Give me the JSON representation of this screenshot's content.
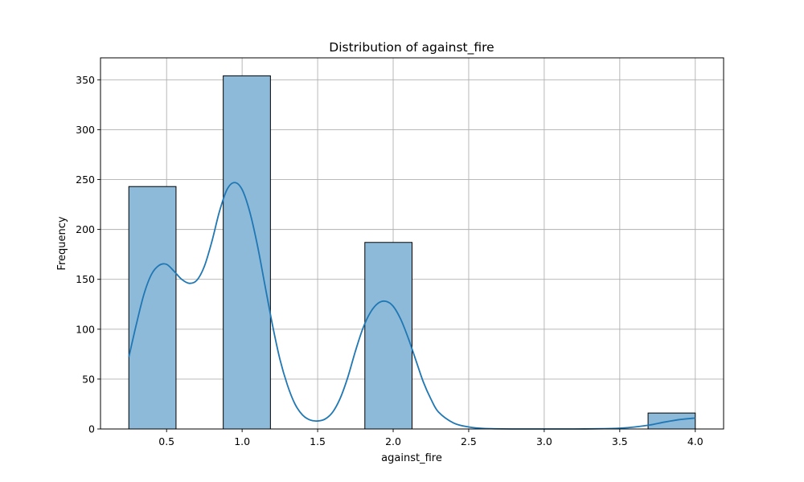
{
  "chart_data": {
    "type": "bar",
    "title": "Distribution of against_fire",
    "xlabel": "against_fire",
    "ylabel": "Frequency",
    "xlim": [
      0.0625,
      4.1875
    ],
    "ylim": [
      0,
      372
    ],
    "xticks": [
      0.5,
      1.0,
      1.5,
      2.0,
      2.5,
      3.0,
      3.5,
      4.0
    ],
    "xtick_labels": [
      "0.5",
      "1.0",
      "1.5",
      "2.0",
      "2.5",
      "3.0",
      "3.5",
      "4.0"
    ],
    "yticks": [
      0,
      50,
      100,
      150,
      200,
      250,
      300,
      350
    ],
    "ytick_labels": [
      "0",
      "50",
      "100",
      "150",
      "200",
      "250",
      "300",
      "350"
    ],
    "grid": true,
    "bin_width": 0.3125,
    "bins": [
      {
        "x0": 0.25,
        "x1": 0.5625,
        "count": 243
      },
      {
        "x0": 0.875,
        "x1": 1.1875,
        "count": 354
      },
      {
        "x0": 1.8125,
        "x1": 2.125,
        "count": 187
      },
      {
        "x0": 3.6875,
        "x1": 4.0,
        "count": 16
      }
    ],
    "kde": {
      "x": [
        0.25,
        0.3,
        0.35,
        0.4,
        0.45,
        0.5,
        0.55,
        0.6,
        0.65,
        0.7,
        0.75,
        0.8,
        0.85,
        0.9,
        0.95,
        1.0,
        1.05,
        1.1,
        1.15,
        1.2,
        1.25,
        1.3,
        1.35,
        1.4,
        1.45,
        1.5,
        1.55,
        1.6,
        1.65,
        1.7,
        1.75,
        1.8,
        1.85,
        1.9,
        1.95,
        2.0,
        2.05,
        2.1,
        2.15,
        2.2,
        2.25,
        2.3,
        2.4,
        2.5,
        2.6,
        2.8,
        3.0,
        3.2,
        3.4,
        3.5,
        3.6,
        3.7,
        3.8,
        3.9,
        4.0
      ],
      "y": [
        72,
        105,
        135,
        155,
        164,
        165,
        158,
        150,
        146,
        149,
        163,
        188,
        218,
        240,
        247,
        240,
        218,
        185,
        145,
        105,
        70,
        44,
        25,
        14,
        9,
        8,
        10,
        17,
        31,
        52,
        78,
        101,
        117,
        126,
        128,
        123,
        110,
        91,
        69,
        47,
        30,
        17,
        6,
        2,
        0.5,
        0,
        0,
        0,
        0.3,
        0.8,
        2,
        4,
        7,
        9.5,
        11
      ]
    },
    "colors": {
      "bar_fill": "#8ebad9",
      "bar_edge": "#000000",
      "kde_line": "#1f77b4"
    }
  }
}
